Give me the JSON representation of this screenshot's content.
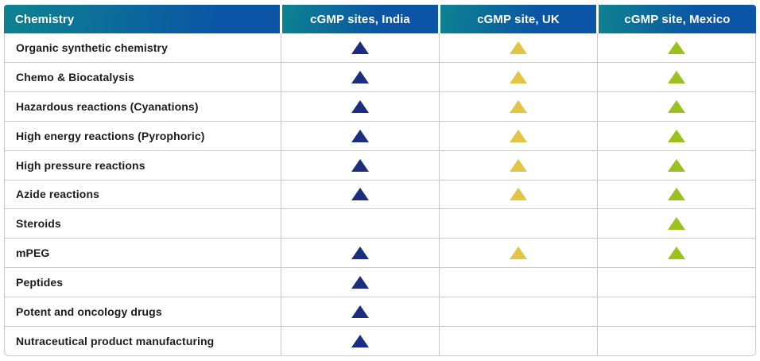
{
  "theme": {
    "header_gradient_from": "#0E8390",
    "header_gradient_to": "#0A55A5",
    "header_text": "#FFFFFF",
    "grid_line": "#C9C9C9",
    "row_text": "#1C1C1C",
    "marker_india": "#1B2D7E",
    "marker_uk": "#E2C544",
    "marker_mexico": "#9BC120"
  },
  "chart_data": {
    "type": "table",
    "columns": [
      "Chemistry",
      "cGMP sites, India",
      "cGMP site, UK",
      "cGMP site, Mexico"
    ],
    "marker": "triangle",
    "rows": [
      {
        "label": "Organic synthetic chemistry",
        "india": true,
        "uk": true,
        "mexico": true
      },
      {
        "label": "Chemo & Biocatalysis",
        "india": true,
        "uk": true,
        "mexico": true
      },
      {
        "label": "Hazardous reactions (Cyanations)",
        "india": true,
        "uk": true,
        "mexico": true
      },
      {
        "label": "High energy reactions (Pyrophoric)",
        "india": true,
        "uk": true,
        "mexico": true
      },
      {
        "label": "High pressure reactions",
        "india": true,
        "uk": true,
        "mexico": true
      },
      {
        "label": "Azide reactions",
        "india": true,
        "uk": true,
        "mexico": true
      },
      {
        "label": "Steroids",
        "india": false,
        "uk": false,
        "mexico": true
      },
      {
        "label": "mPEG",
        "india": true,
        "uk": true,
        "mexico": true
      },
      {
        "label": "Peptides",
        "india": true,
        "uk": false,
        "mexico": false
      },
      {
        "label": "Potent and oncology drugs",
        "india": true,
        "uk": false,
        "mexico": false
      },
      {
        "label": "Nutraceutical product manufacturing",
        "india": true,
        "uk": false,
        "mexico": false
      }
    ]
  }
}
